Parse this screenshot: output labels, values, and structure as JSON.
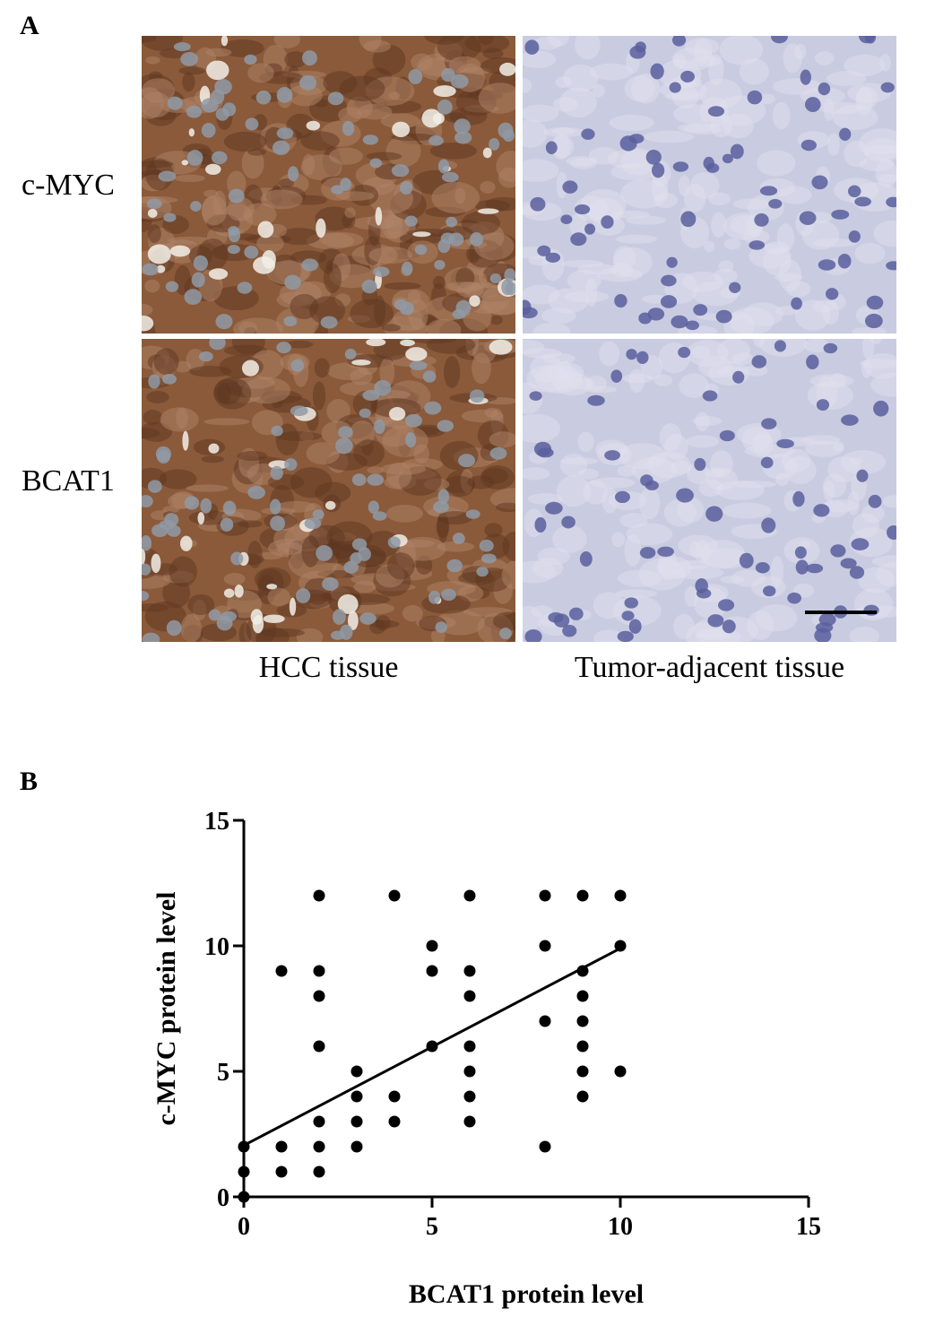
{
  "panel_a": {
    "letter": "A",
    "row_labels": [
      "c-MYC",
      "BCAT1"
    ],
    "column_labels": [
      "HCC tissue",
      "Tumor-adjacent tissue"
    ],
    "stain_colors": {
      "positive": "#8a5a3a",
      "negative": "#c9cbe0",
      "nucleus": "#5a5f9e"
    }
  },
  "panel_b": {
    "letter": "B"
  },
  "chart_data": {
    "type": "scatter",
    "title": "",
    "xlabel": "BCAT1 protein level",
    "ylabel": "c-MYC protein level",
    "xlim": [
      0,
      15
    ],
    "ylim": [
      0,
      15
    ],
    "xticks": [
      0,
      5,
      10,
      15
    ],
    "yticks": [
      0,
      5,
      10,
      15
    ],
    "grid": false,
    "points": [
      [
        0,
        0
      ],
      [
        0,
        1
      ],
      [
        0,
        2
      ],
      [
        1,
        1
      ],
      [
        1,
        2
      ],
      [
        1,
        9
      ],
      [
        2,
        1
      ],
      [
        2,
        2
      ],
      [
        2,
        3
      ],
      [
        2,
        6
      ],
      [
        2,
        8
      ],
      [
        2,
        9
      ],
      [
        2,
        12
      ],
      [
        3,
        2
      ],
      [
        3,
        3
      ],
      [
        3,
        4
      ],
      [
        3,
        5
      ],
      [
        4,
        3
      ],
      [
        4,
        4
      ],
      [
        4,
        12
      ],
      [
        5,
        6
      ],
      [
        5,
        9
      ],
      [
        5,
        10
      ],
      [
        6,
        3
      ],
      [
        6,
        4
      ],
      [
        6,
        5
      ],
      [
        6,
        6
      ],
      [
        6,
        8
      ],
      [
        6,
        9
      ],
      [
        6,
        12
      ],
      [
        8,
        2
      ],
      [
        8,
        7
      ],
      [
        8,
        10
      ],
      [
        8,
        12
      ],
      [
        9,
        4
      ],
      [
        9,
        5
      ],
      [
        9,
        6
      ],
      [
        9,
        7
      ],
      [
        9,
        8
      ],
      [
        9,
        9
      ],
      [
        9,
        12
      ],
      [
        10,
        5
      ],
      [
        10,
        10
      ],
      [
        10,
        12
      ]
    ],
    "regression_line": {
      "x": [
        0,
        10
      ],
      "y": [
        2.05,
        9.9
      ]
    },
    "marker_color": "#000000"
  }
}
